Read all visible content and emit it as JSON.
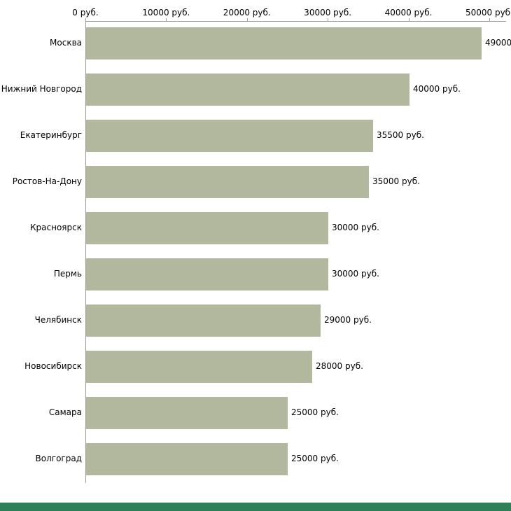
{
  "footer": {
    "color": "#2f8058"
  },
  "chart_data": {
    "type": "bar",
    "orientation": "horizontal",
    "title": "",
    "xlabel": "",
    "ylabel": "",
    "grid": false,
    "legend": false,
    "categories": [
      "Москва",
      "Нижний Новгород",
      "Екатеринбург",
      "Ростов-На-Дону",
      "Красноярск",
      "Пермь",
      "Челябинск",
      "Новосибирск",
      "Самара",
      "Волгоград"
    ],
    "values": [
      49000,
      40000,
      35500,
      35000,
      30000,
      30000,
      29000,
      28000,
      25000,
      25000
    ],
    "value_labels": [
      "49000",
      "40000 руб.",
      "35500 руб.",
      "35000 руб.",
      "30000 руб.",
      "30000 руб.",
      "29000 руб.",
      "28000 руб.",
      "25000 руб.",
      "25000 руб."
    ],
    "x_ticks": [
      0,
      10000,
      20000,
      30000,
      40000,
      50000
    ],
    "x_tick_labels": [
      "0 руб.",
      "10000 руб.",
      "20000 руб.",
      "30000 руб.",
      "40000 руб.",
      "50000 руб."
    ],
    "xlim": [
      0,
      52000
    ],
    "bar_color": "#b2b89e",
    "axis_color": "#9a9a9a"
  }
}
